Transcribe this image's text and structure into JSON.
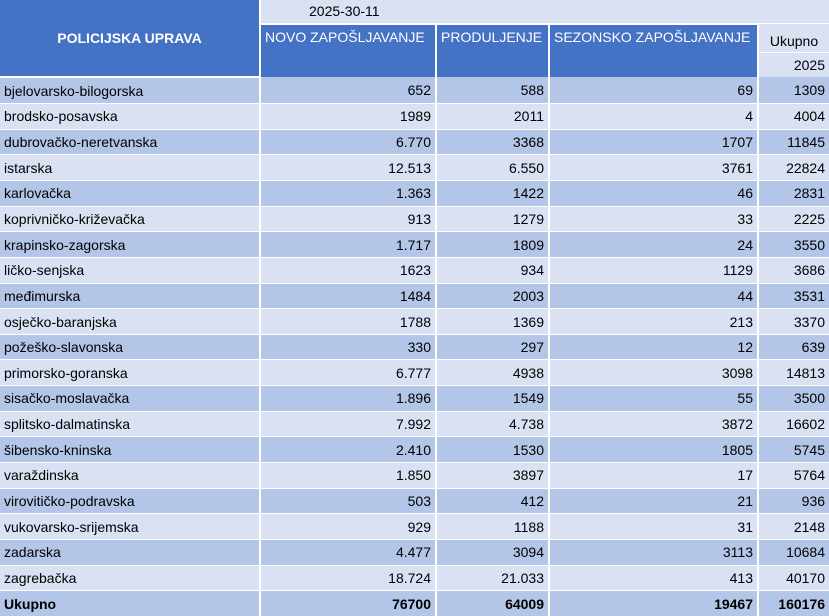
{
  "header": {
    "department": "POLICIJSKA UPRAVA",
    "date": "2025-30-11",
    "col_new": "NOVO ZAPOŠLJAVANJE",
    "col_extension": "PRODULJENJE",
    "col_seasonal": "SEZONSKO ZAPOŠLJAVANJE",
    "col_total": "Ukupno",
    "col_total_year": "2025"
  },
  "rows": [
    {
      "name": "bjelovarsko-bilogorska",
      "new": "652",
      "ext": "588",
      "seasonal": "69",
      "total": "1309"
    },
    {
      "name": "brodsko-posavska",
      "new": "1989",
      "ext": "2011",
      "seasonal": "4",
      "total": "4004"
    },
    {
      "name": "dubrovačko-neretvanska",
      "new": "6.770",
      "ext": "3368",
      "seasonal": "1707",
      "total": "11845"
    },
    {
      "name": "istarska",
      "new": "12.513",
      "ext": "6.550",
      "seasonal": "3761",
      "total": "22824"
    },
    {
      "name": "karlovačka",
      "new": "1.363",
      "ext": "1422",
      "seasonal": "46",
      "total": "2831"
    },
    {
      "name": "koprivničko-križevačka",
      "new": "913",
      "ext": "1279",
      "seasonal": "33",
      "total": "2225"
    },
    {
      "name": "krapinsko-zagorska",
      "new": "1.717",
      "ext": "1809",
      "seasonal": "24",
      "total": "3550"
    },
    {
      "name": "ličko-senjska",
      "new": "1623",
      "ext": "934",
      "seasonal": "1129",
      "total": "3686"
    },
    {
      "name": "međimurska",
      "new": "1484",
      "ext": "2003",
      "seasonal": "44",
      "total": "3531"
    },
    {
      "name": "osječko-baranjska",
      "new": "1788",
      "ext": "1369",
      "seasonal": "213",
      "total": "3370"
    },
    {
      "name": "požeško-slavonska",
      "new": "330",
      "ext": "297",
      "seasonal": "12",
      "total": "639"
    },
    {
      "name": "primorsko-goranska",
      "new": "6.777",
      "ext": "4938",
      "seasonal": "3098",
      "total": "14813"
    },
    {
      "name": "sisačko-moslavačka",
      "new": "1.896",
      "ext": "1549",
      "seasonal": "55",
      "total": "3500"
    },
    {
      "name": "splitsko-dalmatinska",
      "new": "7.992",
      "ext": "4.738",
      "seasonal": "3872",
      "total": "16602"
    },
    {
      "name": "šibensko-kninska",
      "new": "2.410",
      "ext": "1530",
      "seasonal": "1805",
      "total": "5745"
    },
    {
      "name": "varaždinska",
      "new": "1.850",
      "ext": "3897",
      "seasonal": "17",
      "total": "5764"
    },
    {
      "name": "virovitičko-podravska",
      "new": "503",
      "ext": "412",
      "seasonal": "21",
      "total": "936"
    },
    {
      "name": "vukovarsko-srijemska",
      "new": "929",
      "ext": "1188",
      "seasonal": "31",
      "total": "2148"
    },
    {
      "name": "zadarska",
      "new": "4.477",
      "ext": "3094",
      "seasonal": "3113",
      "total": "10684"
    },
    {
      "name": "zagrebačka",
      "new": "18.724",
      "ext": "21.033",
      "seasonal": "413",
      "total": "40170"
    }
  ],
  "totals": {
    "label": "Ukupno",
    "new": "76700",
    "ext": "64009",
    "seasonal": "19467",
    "total": "160176"
  },
  "colors": {
    "header_blue": "#4472c4",
    "row_dark": "#b4c6e7",
    "row_light": "#d9e1f2"
  }
}
